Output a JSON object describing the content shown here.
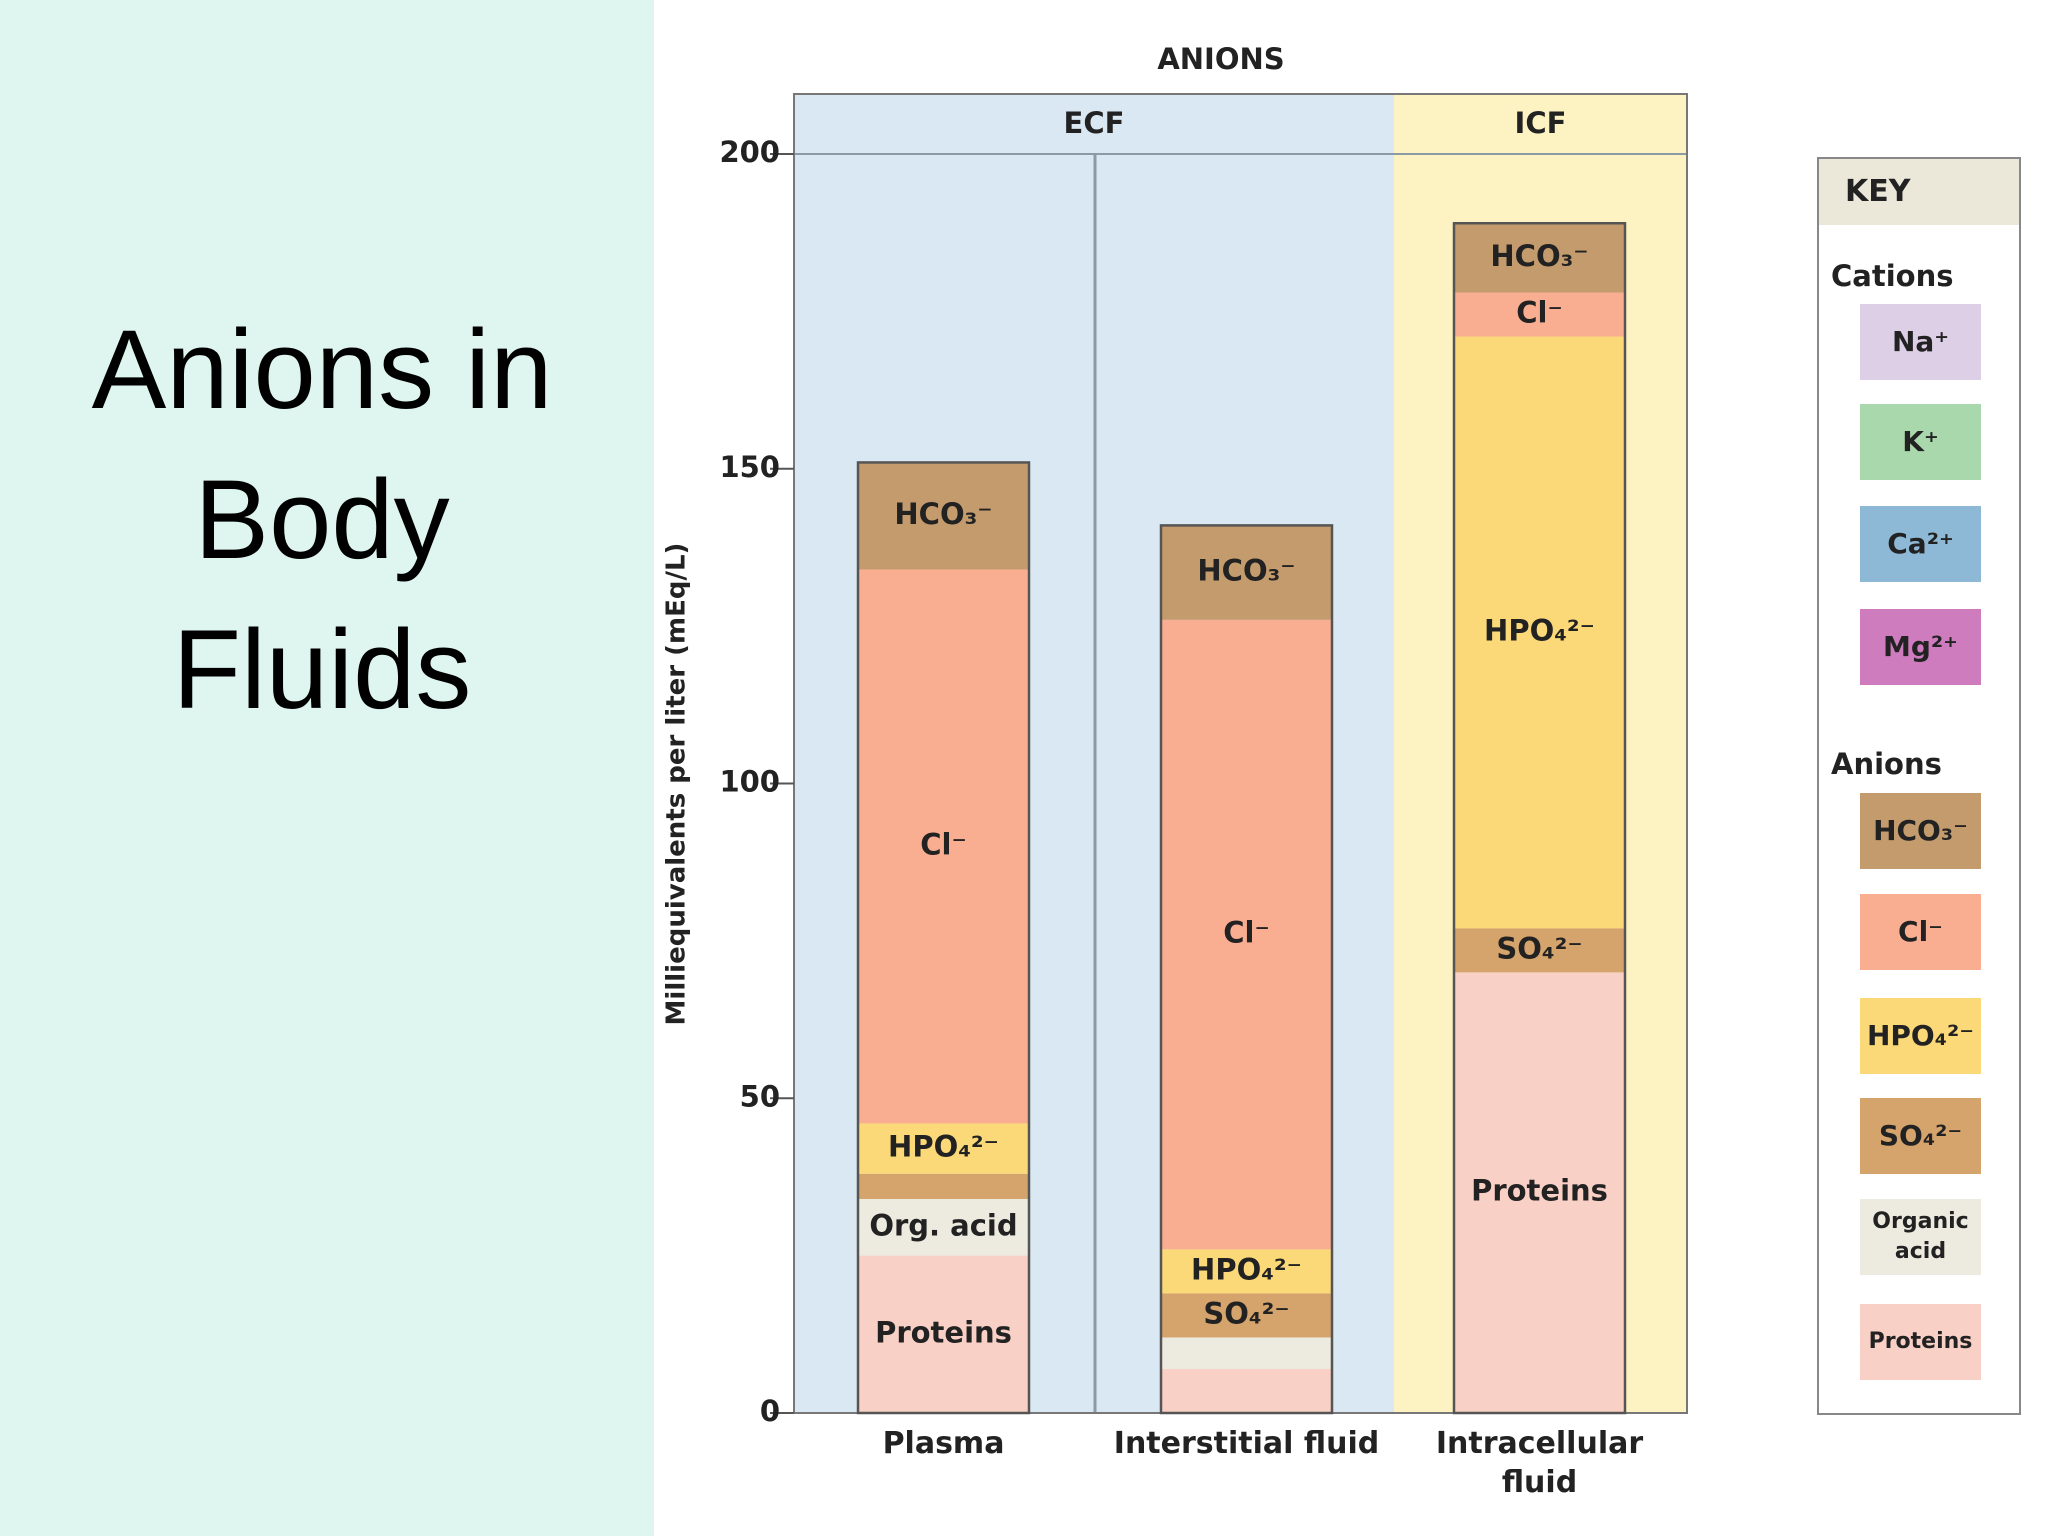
{
  "slide": {
    "title": "Anions in Body Fluids"
  },
  "chart_data": {
    "type": "bar",
    "stacked": true,
    "title": "ANIONS",
    "y_label": "Milliequivalents per liter (mEq/L)",
    "categories": [
      "Plasma",
      "Interstitial fluid",
      "Intracellular fluid"
    ],
    "groups": [
      {
        "label": "ECF",
        "color": "#d9e8f2",
        "categories": [
          "Plasma",
          "Interstitial fluid"
        ]
      },
      {
        "label": "ICF",
        "color": "#fdf3c2",
        "categories": [
          "Intracellular fluid"
        ]
      }
    ],
    "series": [
      {
        "name": "Proteins",
        "color": "#f9d0c5",
        "values": [
          25,
          7,
          70
        ],
        "labels": [
          "Proteins",
          null,
          "Proteins"
        ]
      },
      {
        "name": "Organic acid",
        "color": "#edeadf",
        "values": [
          9,
          5,
          0
        ],
        "labels": [
          "Org. acid",
          null,
          null
        ]
      },
      {
        "name": "SO₄²⁻",
        "color": "#d5a36c",
        "values": [
          4,
          7,
          7
        ],
        "labels": [
          null,
          "SO₄²⁻",
          "SO₄²⁻"
        ]
      },
      {
        "name": "HPO₄²⁻",
        "color": "#fbd978",
        "values": [
          8,
          7,
          94
        ],
        "labels": [
          "HPO₄²⁻",
          "HPO₄²⁻",
          "HPO₄²⁻"
        ]
      },
      {
        "name": "Cl⁻",
        "color": "#f9ae92",
        "values": [
          88,
          100,
          7
        ],
        "labels": [
          "Cl⁻",
          "Cl⁻",
          "Cl⁻"
        ]
      },
      {
        "name": "HCO₃⁻",
        "color": "#c49b6d",
        "values": [
          17,
          15,
          11
        ],
        "labels": [
          "HCO₃⁻",
          "HCO₃⁻",
          "HCO₃⁻"
        ]
      }
    ],
    "ylim": [
      0,
      200
    ],
    "yticks": [
      0,
      50,
      100,
      150,
      200
    ],
    "key": {
      "title": "KEY",
      "cations_title": "Cations",
      "cations": [
        {
          "name": "Na⁺",
          "color": "#dccfe6"
        },
        {
          "name": "K⁺",
          "color": "#a9d8ac"
        },
        {
          "name": "Ca²⁺",
          "color": "#8db8d6"
        },
        {
          "name": "Mg²⁺",
          "color": "#cf7cbf"
        }
      ],
      "anions_title": "Anions"
    }
  }
}
